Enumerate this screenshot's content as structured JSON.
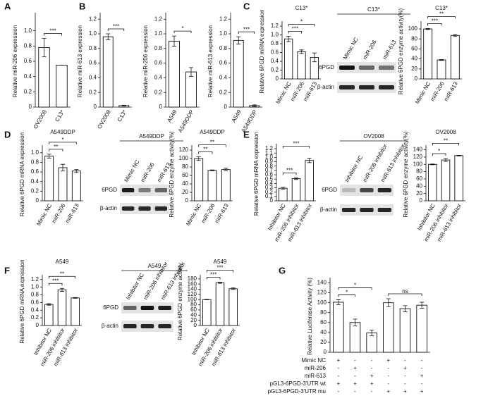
{
  "chart_data": [
    {
      "type": "bar",
      "panel": "A",
      "y_label": "Relative miR-206 expression",
      "categories": [
        "OV2008",
        "C13*"
      ],
      "values": [
        0.78,
        0.55
      ],
      "errors": [
        0.12,
        0
      ],
      "color": "#ffffff",
      "ylim": [
        0,
        1.2
      ],
      "yticks": [
        0,
        0.2,
        0.4,
        0.6,
        0.8,
        {
          "value": 1,
          "label": "1.0"
        }
      ],
      "annotations": [
        {
          "label": "***",
          "between": [
            0,
            1
          ]
        }
      ]
    },
    {
      "type": "bar",
      "panel": "B",
      "y_label": "Relative miR-613 expression",
      "categories": [
        "OV2008",
        "C13*"
      ],
      "values": [
        0.96,
        0.02
      ],
      "errors": [
        0.04,
        0.005
      ],
      "color": "#ffffff",
      "ylim": [
        0,
        1.25
      ],
      "yticks": [
        0,
        0.2,
        0.4,
        0.6,
        0.8,
        {
          "value": 1,
          "label": "1.0"
        },
        1.2
      ],
      "annotations": [
        {
          "label": "***",
          "between": [
            0,
            1
          ]
        }
      ]
    },
    {
      "type": "bar",
      "y_label": "Relative miR-206 expression",
      "categories": [
        "A549",
        "A549DDP"
      ],
      "values": [
        0.9,
        0.48
      ],
      "errors": [
        0.07,
        0.06
      ],
      "color": "#ffffff",
      "ylim": [
        0,
        1.25
      ],
      "yticks": [
        0,
        0.2,
        0.4,
        0.6,
        0.8,
        {
          "value": 1,
          "label": "1.0"
        },
        1.2
      ],
      "annotations": [
        {
          "label": "*",
          "between": [
            0,
            1
          ]
        }
      ]
    },
    {
      "type": "bar",
      "y_label": "Relative miR-613 expression",
      "categories": [
        "A549",
        "A549DDP"
      ],
      "values": [
        0.91,
        0.02
      ],
      "errors": [
        0.05,
        0.01
      ],
      "color": "#ffffff",
      "ylim": [
        0,
        1.25
      ],
      "yticks": [
        0,
        0.2,
        0.4,
        0.6,
        0.8,
        {
          "value": 1,
          "label": "1.0"
        },
        1.2
      ],
      "annotations": [
        {
          "label": "***",
          "between": [
            0,
            1
          ]
        }
      ]
    },
    {
      "type": "bar",
      "panel": "C",
      "title": "C13*",
      "y_label": "Relative 6PGD mRNA expression",
      "categories": [
        "Mimic NC",
        "miR-206",
        "miR-613"
      ],
      "values": [
        0.91,
        0.62,
        0.49
      ],
      "errors": [
        0.06,
        0.04,
        0.1
      ],
      "color": "#ffffff",
      "ylim": [
        0,
        1.25
      ],
      "yticks": [
        0,
        0.2,
        0.4,
        0.6,
        0.8,
        {
          "value": 1,
          "label": "1.0"
        },
        1.2
      ],
      "annotations": [
        {
          "label": "***",
          "between": [
            0,
            1
          ]
        },
        {
          "label": "*",
          "between": [
            0,
            2
          ]
        }
      ]
    },
    {
      "type": "bar",
      "title": "C13*",
      "y_label": "Relative 6PGD enzyme activity(%)",
      "categories": [
        "Mimic NC",
        "miR-206",
        "miR-613"
      ],
      "values": [
        100,
        38,
        87
      ],
      "errors": [
        1,
        1,
        2
      ],
      "color": "#ffffff",
      "ylim": [
        0,
        110
      ],
      "yticks": [
        0,
        20,
        40,
        60,
        80,
        100
      ],
      "annotations": [
        {
          "label": "***",
          "between": [
            0,
            1
          ]
        },
        {
          "label": "**",
          "between": [
            0,
            2
          ]
        }
      ]
    },
    {
      "type": "bar",
      "panel": "D",
      "title": "A549DDP",
      "y_label": "Relative 6PGD mRNA expression",
      "categories": [
        "Mimic NC",
        "miR-206",
        "miR-613"
      ],
      "values": [
        0.93,
        0.69,
        0.62
      ],
      "errors": [
        0.04,
        0.07,
        0.03
      ],
      "color": "#ffffff",
      "ylim": [
        0,
        1.1
      ],
      "yticks": [
        0,
        0.2,
        0.4,
        0.6,
        0.8,
        {
          "value": 1,
          "label": "1.0"
        }
      ],
      "annotations": [
        {
          "label": "**",
          "between": [
            0,
            1
          ]
        },
        {
          "label": "*",
          "between": [
            0,
            2
          ]
        }
      ]
    },
    {
      "type": "bar",
      "title": "A549DDP",
      "y_label": "Relative 6PGD enzyme activity(%)",
      "categories": [
        "Mimic NC",
        "miR-206",
        "miR-613"
      ],
      "values": [
        100,
        72,
        74
      ],
      "errors": [
        4,
        1,
        3
      ],
      "color": "#ffffff",
      "ylim": [
        0,
        125
      ],
      "yticks": [
        0,
        20,
        40,
        60,
        80,
        100,
        120
      ],
      "annotations": [
        {
          "label": "**",
          "between": [
            0,
            1
          ]
        },
        {
          "label": "**",
          "between": [
            0,
            2
          ]
        }
      ]
    },
    {
      "type": "bar",
      "panel": "E",
      "y_label": "Relative 6PGD mRNA expression",
      "categories": [
        "Inhibitor NC",
        "miR-206 inhibitor",
        "miR-613 inhibitor"
      ],
      "values": [
        0.29,
        0.51,
        0.93
      ],
      "errors": [
        0.02,
        0.02,
        0.05
      ],
      "color": "#ffffff",
      "ylim": [
        0,
        1.25
      ],
      "yticks": [
        0,
        0.1,
        0.2,
        0.3,
        0.4,
        0.5,
        0.6,
        0.7,
        0.8,
        0.9,
        {
          "value": 1,
          "label": "1.0"
        },
        1.1,
        1.2
      ],
      "annotations": [
        {
          "label": "***",
          "between": [
            0,
            1
          ]
        },
        {
          "label": "***",
          "between": [
            0,
            2
          ]
        }
      ]
    },
    {
      "type": "bar",
      "title": "OV2008",
      "y_label": "Relative 6PGD enzyme activity(%)",
      "categories": [
        "Inhibitor NC",
        "miR-206 inhibitor",
        "miR-613 inhibitor"
      ],
      "values": [
        100,
        112,
        124
      ],
      "errors": [
        1,
        4,
        1
      ],
      "color": "#ffffff",
      "ylim": [
        0,
        145
      ],
      "yticks": [
        0,
        20,
        40,
        60,
        80,
        100,
        120,
        140
      ],
      "annotations": [
        {
          "label": "*",
          "between": [
            0,
            1
          ]
        },
        {
          "label": "**",
          "between": [
            0,
            2
          ]
        }
      ]
    },
    {
      "type": "bar",
      "panel": "F",
      "title": "A549",
      "y_label": "Relative 6PGD mRNA expression",
      "categories": [
        "Inhibitor NC",
        "miR-206 inhibitor",
        "miR-613 inhibitor"
      ],
      "values": [
        0.55,
        0.93,
        0.72
      ],
      "errors": [
        0.02,
        0.04,
        0.01
      ],
      "color": "#ffffff",
      "ylim": [
        0,
        1.25
      ],
      "yticks": [
        0,
        0.2,
        0.4,
        0.6,
        0.8,
        {
          "value": 1,
          "label": "1.0"
        },
        1.2
      ],
      "annotations": [
        {
          "label": "***",
          "between": [
            0,
            1
          ]
        },
        {
          "label": "**",
          "between": [
            0,
            2
          ]
        }
      ]
    },
    {
      "type": "bar",
      "title": "A549",
      "y_label": "Relative 6PGD enzyme activity",
      "categories": [
        "Inhibitor NC",
        "miR-206 inhibitor",
        "miR-613 inhibitor"
      ],
      "values": [
        100,
        165,
        142
      ],
      "errors": [
        1,
        2,
        3
      ],
      "color": "#ffffff",
      "ylim": [
        0,
        185
      ],
      "yticks": [
        0,
        20,
        40,
        60,
        80,
        100,
        120,
        140,
        160,
        180
      ],
      "annotations": [
        {
          "label": "***",
          "between": [
            0,
            1
          ]
        },
        {
          "label": "***",
          "between": [
            0,
            2
          ]
        }
      ]
    },
    {
      "type": "bar",
      "panel": "G",
      "y_label": "Relative Luciferase Activity (%)",
      "categories": [
        null,
        null,
        null,
        null,
        null,
        null
      ],
      "values": [
        101,
        60,
        39,
        100,
        88,
        95
      ],
      "errors": [
        5,
        7,
        6,
        8,
        6,
        6
      ],
      "color": "#ffffff",
      "ylim": [
        0,
        145
      ],
      "yticks": [
        0,
        20,
        40,
        60,
        80,
        100,
        120,
        140
      ],
      "annotations": [
        {
          "label": "*",
          "between": [
            0,
            1
          ]
        },
        {
          "label": "*",
          "between": [
            0,
            2
          ]
        },
        {
          "label": "ns",
          "between": [
            3,
            5
          ]
        }
      ],
      "conditions": [
        {
          "label": "Mimic NC",
          "signs": [
            "+",
            "-",
            "-",
            "+",
            "-",
            "-"
          ]
        },
        {
          "label": "miR-206",
          "signs": [
            "-",
            "+",
            "-",
            "-",
            "+",
            "-"
          ]
        },
        {
          "label": "miR-613",
          "signs": [
            "-",
            "-",
            "+",
            "-",
            "-",
            "+"
          ]
        },
        {
          "label": "pGL3-6PGD-3'UTR wt",
          "signs": [
            "+",
            "+",
            "+",
            "-",
            "-",
            "-"
          ]
        },
        {
          "label": "pGL3-6PGD-3'UTR mu",
          "signs": [
            "-",
            "-",
            "-",
            "+",
            "+",
            "+"
          ]
        }
      ]
    }
  ],
  "blots": [
    {
      "title": "C13*",
      "lanes": [
        "Mimic NC",
        "miR-206",
        "miR-613"
      ],
      "rows": [
        "6PGD",
        "β-actin"
      ]
    },
    {
      "title": "A549DDP",
      "lanes": [
        "Mimic NC",
        "miR-206",
        "miR-613"
      ],
      "rows": [
        "6PGD",
        "β-actin"
      ]
    },
    {
      "title": "OV2008",
      "lanes": [
        "Inhibitor NC",
        "miR-206 inhibitor",
        "miR-613 inhibitor"
      ],
      "rows": [
        "6PGD",
        "β-actin"
      ]
    },
    {
      "title": "A549",
      "lanes": [
        "Inhibitor NC",
        "miR-206 inhibitor",
        "miR-613 inhibitor"
      ],
      "rows": [
        "6PGD",
        "β-actin"
      ]
    }
  ]
}
